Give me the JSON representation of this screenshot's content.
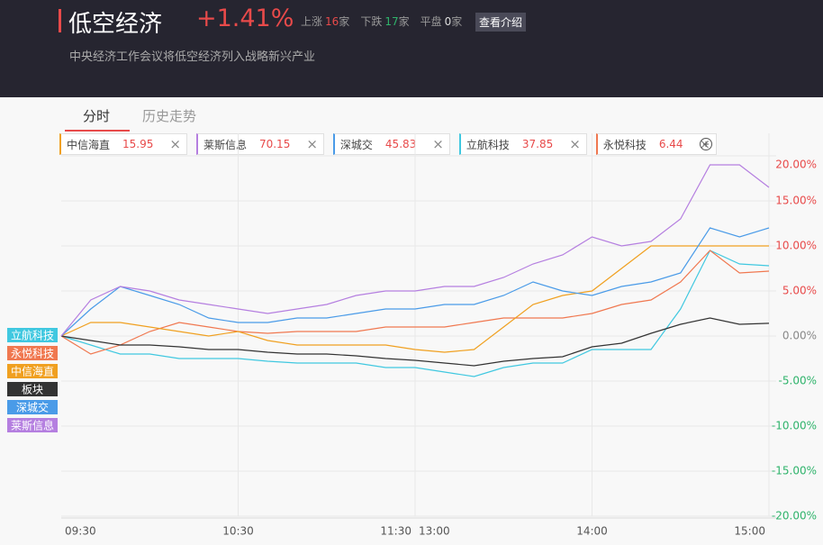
{
  "header": {
    "title": "低空经济",
    "change": "+1.41%",
    "stats": [
      {
        "label": "上涨",
        "count": 16,
        "unit": "家",
        "color": "#e84a4a"
      },
      {
        "label": "下跌",
        "count": 17,
        "unit": "家",
        "color": "#2fb36b"
      },
      {
        "label": "平盘",
        "count": 0,
        "unit": "家",
        "color": "#dddddd"
      }
    ],
    "button": "查看介绍",
    "subtitle": "中央经济工作会议将低空经济列入战略新兴产业"
  },
  "tabs": [
    "分时",
    "历史走势"
  ],
  "chips": [
    {
      "name": "中信海直",
      "price": 15.95,
      "color": "#f0a020"
    },
    {
      "name": "莱斯信息",
      "price": 70.15,
      "color": "#b57fe0"
    },
    {
      "name": "深城交",
      "price": 45.83,
      "color": "#4a9be8"
    },
    {
      "name": "立航科技",
      "price": 37.85,
      "color": "#40c8e0"
    },
    {
      "name": "永悦科技",
      "price": 6.44,
      "color": "#f07850"
    }
  ],
  "chart_data": {
    "type": "line",
    "x": [
      "09:30",
      "09:40",
      "09:50",
      "10:00",
      "10:10",
      "10:20",
      "10:30",
      "10:40",
      "10:50",
      "11:00",
      "11:10",
      "11:20",
      "11:30",
      "13:10",
      "13:20",
      "13:30",
      "13:40",
      "13:50",
      "14:00",
      "14:10",
      "14:20",
      "14:30",
      "14:40",
      "14:50",
      "15:00"
    ],
    "series": [
      {
        "name": "立航科技",
        "color": "#40c8e0",
        "values": [
          0,
          -1,
          -2,
          -2,
          -2.5,
          -2.5,
          -2.5,
          -2.8,
          -3,
          -3,
          -3,
          -3.5,
          -3.5,
          -4,
          -4.5,
          -3.5,
          -3,
          -3,
          -1.5,
          -1.5,
          -1.5,
          3,
          9.5,
          8,
          7.8
        ]
      },
      {
        "name": "永悦科技",
        "color": "#f07850",
        "values": [
          0,
          -2,
          -1,
          0.5,
          1.5,
          1,
          0.5,
          0.3,
          0.5,
          0.5,
          0.5,
          1,
          1,
          1,
          1.5,
          2,
          2,
          2,
          2.5,
          3.5,
          4,
          6,
          9.5,
          7,
          7.2
        ]
      },
      {
        "name": "中信海直",
        "color": "#f0a020",
        "values": [
          0,
          1.5,
          1.5,
          1,
          0.5,
          0,
          0.5,
          -0.5,
          -1,
          -1,
          -1,
          -1,
          -1.5,
          -1.8,
          -1.5,
          1,
          3.5,
          4.5,
          5,
          7.5,
          10,
          10,
          10,
          10,
          10
        ]
      },
      {
        "name": "板块",
        "color": "#333333",
        "values": [
          0,
          -0.5,
          -1,
          -1,
          -1.2,
          -1.5,
          -1.5,
          -1.8,
          -2,
          -2,
          -2.2,
          -2.5,
          -2.7,
          -3,
          -3.3,
          -2.8,
          -2.5,
          -2.3,
          -1.2,
          -0.8,
          0.3,
          1.3,
          2,
          1.3,
          1.41
        ]
      },
      {
        "name": "深城交",
        "color": "#4a9be8",
        "values": [
          0,
          3,
          5.5,
          4.5,
          3.5,
          2,
          1.5,
          1.5,
          2,
          2,
          2.5,
          3,
          3,
          3.5,
          3.5,
          4.5,
          6,
          5,
          4.5,
          5.5,
          6,
          7,
          12,
          11,
          12
        ]
      },
      {
        "name": "莱斯信息",
        "color": "#b57fe0",
        "values": [
          0,
          4,
          5.5,
          5,
          4,
          3.5,
          3,
          2.5,
          3,
          3.5,
          4.5,
          5,
          5,
          5.5,
          5.5,
          6.5,
          8,
          9,
          11,
          10,
          10.5,
          13,
          19,
          19,
          16.5
        ]
      }
    ],
    "ylim": [
      -20,
      20
    ],
    "yticks": [
      {
        "value": 20,
        "label": "20.00%"
      },
      {
        "value": 15,
        "label": "15.00%"
      },
      {
        "value": 10,
        "label": "10.00%"
      },
      {
        "value": 5,
        "label": "5.00%"
      },
      {
        "value": 0,
        "label": "0.00%"
      },
      {
        "value": -5,
        "label": "-5.00%"
      },
      {
        "value": -10,
        "label": "-10.00%"
      },
      {
        "value": -15,
        "label": "-15.00%"
      },
      {
        "value": -20,
        "label": "-20.00%"
      }
    ],
    "xticks": [
      "09:30",
      "10:30",
      "11:30",
      "13:00",
      "14:00",
      "15:00"
    ],
    "grid": true
  }
}
